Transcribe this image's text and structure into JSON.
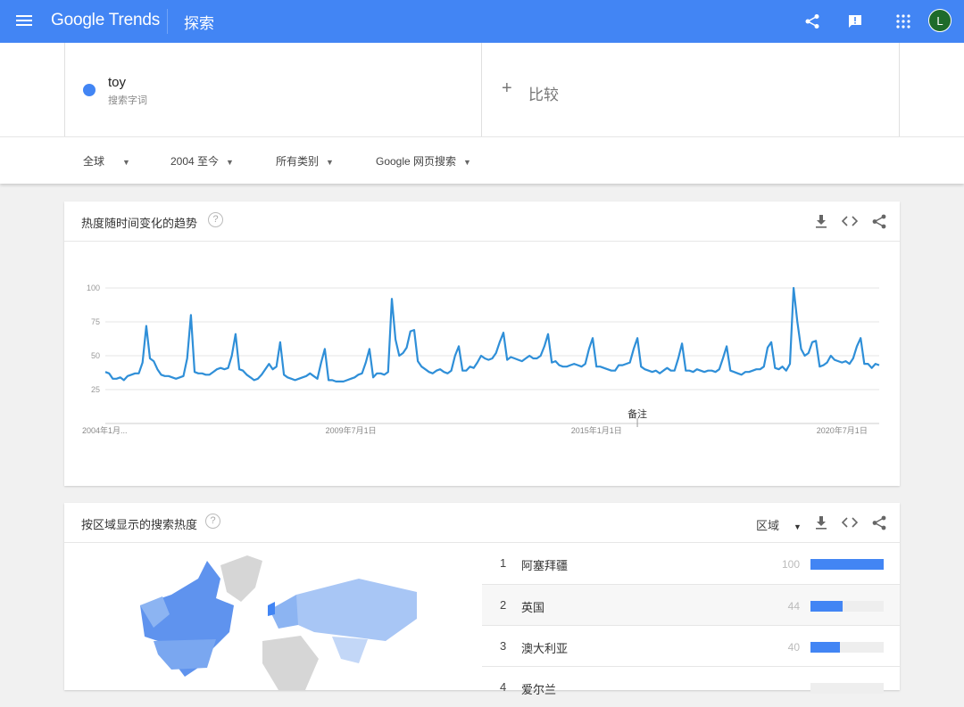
{
  "header": {
    "logo": "Google Trends",
    "title": "探索",
    "avatar_letter": "L",
    "icons": [
      "menu-icon",
      "share-icon",
      "feedback-icon",
      "apps-icon"
    ]
  },
  "search": {
    "term": "toy",
    "term_type": "搜索字词",
    "compare_label": "比较",
    "term_color": "#4285f4"
  },
  "filters": {
    "region": "全球",
    "time": "2004 至今",
    "category": "所有类别",
    "property": "Google 网页搜索"
  },
  "trend_card": {
    "title": "热度随时间变化的趋势",
    "help": "?",
    "note_label": "备注"
  },
  "chart_data": {
    "type": "line",
    "x_start": "2004-01",
    "x_interval": "month",
    "yticks": [
      "100",
      "75",
      "50",
      "25"
    ],
    "ylim": [
      0,
      100
    ],
    "xtick_labels": [
      "2004年1月...",
      "2009年7月1日",
      "2015年1月1日",
      "2020年7月1日"
    ],
    "grid": true,
    "series": [
      {
        "color": "#2f8fd8",
        "values": [
          38,
          37,
          33,
          33,
          34,
          32,
          35,
          36,
          37,
          37,
          45,
          72,
          48,
          46,
          40,
          36,
          35,
          35,
          34,
          33,
          34,
          35,
          48,
          80,
          38,
          37,
          37,
          36,
          36,
          38,
          40,
          41,
          40,
          41,
          50,
          66,
          40,
          39,
          36,
          34,
          32,
          33,
          36,
          40,
          44,
          40,
          42,
          60,
          36,
          34,
          33,
          32,
          33,
          34,
          35,
          37,
          35,
          33,
          45,
          55,
          32,
          32,
          31,
          31,
          31,
          32,
          33,
          34,
          36,
          37,
          45,
          55,
          34,
          37,
          37,
          36,
          38,
          92,
          62,
          50,
          52,
          56,
          68,
          69,
          46,
          42,
          40,
          38,
          37,
          39,
          40,
          38,
          37,
          39,
          50,
          57,
          39,
          39,
          42,
          41,
          45,
          50,
          48,
          47,
          48,
          52,
          60,
          67,
          47,
          49,
          48,
          47,
          46,
          48,
          50,
          48,
          48,
          50,
          57,
          66,
          45,
          46,
          43,
          42,
          42,
          43,
          44,
          43,
          42,
          44,
          55,
          63,
          42,
          42,
          41,
          40,
          39,
          39,
          43,
          43,
          44,
          45,
          55,
          63,
          42,
          40,
          39,
          38,
          39,
          37,
          39,
          41,
          39,
          39,
          48,
          59,
          39,
          39,
          38,
          40,
          39,
          38,
          39,
          39,
          38,
          40,
          48,
          57,
          39,
          38,
          37,
          36,
          38,
          38,
          39,
          40,
          40,
          42,
          56,
          60,
          41,
          40,
          42,
          39,
          44,
          100,
          75,
          55,
          50,
          52,
          60,
          61,
          42,
          43,
          45,
          50,
          47,
          46,
          45,
          46,
          44,
          48,
          57,
          63,
          44,
          44,
          41,
          44,
          43
        ]
      }
    ]
  },
  "region_card": {
    "title": "按区域显示的搜索热度",
    "help": "?",
    "resolution": "区域",
    "rows": [
      {
        "rank": "1",
        "name": "阿塞拜疆",
        "value": "100",
        "pct": 100
      },
      {
        "rank": "2",
        "name": "英国",
        "value": "44",
        "pct": 44
      },
      {
        "rank": "3",
        "name": "澳大利亚",
        "value": "40",
        "pct": 40
      },
      {
        "rank": "4",
        "name": "爱尔兰"
      }
    ]
  }
}
